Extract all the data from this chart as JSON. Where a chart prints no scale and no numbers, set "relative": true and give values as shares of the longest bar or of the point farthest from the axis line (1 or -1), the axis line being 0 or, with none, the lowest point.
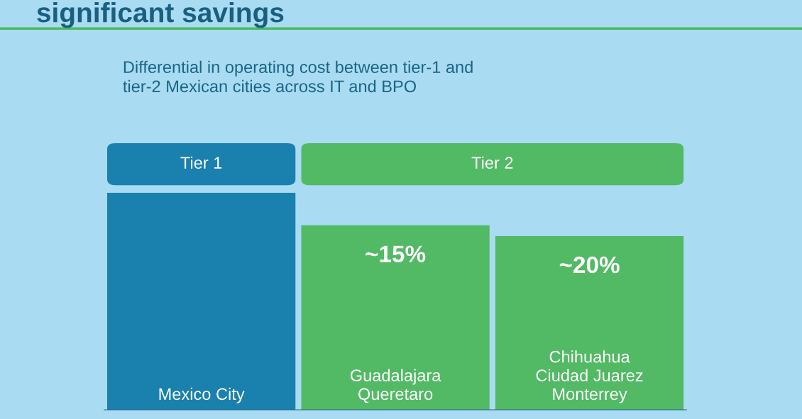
{
  "chart_data": {
    "type": "bar",
    "title": "significant savings",
    "subtitle": "Differential in operating cost between tier-1 and\ntier-2 Mexican cities across IT and BPO",
    "annotations": [
      "Tier 1",
      "Tier 2",
      {
        "text": "~15%",
        "x": "Guadalajara\nQueretaro",
        "y": 0.85
      },
      {
        "text": "~20%",
        "x": "Chihuahua\nCiudad Juarez\nMonterrey",
        "y": 0.8
      }
    ],
    "categories": [
      "Mexico City",
      "Guadalajara\nQueretaro",
      "Chihuahua\nCiudad Juarez\nMonterrey"
    ],
    "values": [
      1,
      0.85,
      0.8
    ],
    "colors": [
      "#1a80ad",
      "#52b965",
      "#52b965"
    ],
    "relative": true
  }
}
